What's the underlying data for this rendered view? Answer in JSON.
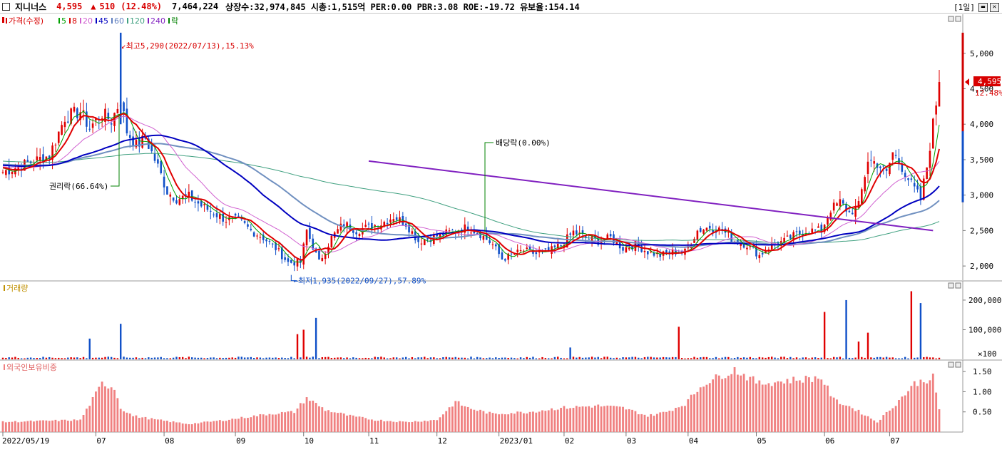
{
  "header": {
    "stock_name": "지니너스",
    "price": "4,595",
    "arrow": "▲",
    "change": "510",
    "change_pct": "(12.48%)",
    "volume": "7,464,224",
    "info": "상장수:32,974,845 시총:1,515억 PER:0.00 PBR:3.08 ROE:-19.72 유보율:154.14",
    "period": "[1일]"
  },
  "legend_price": {
    "items": [
      {
        "label": "가격(수정)",
        "color": "#d80000"
      },
      {
        "label": "5",
        "color": "#00a000"
      },
      {
        "label": "8",
        "color": "#d80000"
      },
      {
        "label": "20",
        "color": "#d060d0"
      },
      {
        "label": "45",
        "color": "#0000c0"
      },
      {
        "label": "60",
        "color": "#6080c0"
      },
      {
        "label": "120",
        "color": "#40a080"
      },
      {
        "label": "240",
        "color": "#8020c0"
      },
      {
        "label": "락",
        "color": "#008000"
      }
    ]
  },
  "legend_volume": {
    "label": "거래량",
    "color": "#c09000"
  },
  "legend_foreign": {
    "label": "외국인보유비중",
    "color": "#f08080"
  },
  "annotations": {
    "high": "최고5,290(2022/07/13),15.13%",
    "low": "최저1,935(2022/09/27),57.89%",
    "rights": "권리락(66.64%)",
    "dividend": "배당락(0.00%)"
  },
  "current_price_tag": {
    "price": "4,595",
    "pct": "12.48%"
  },
  "chart_data": [
    {
      "type": "candlestick",
      "name": "price",
      "ylim": [
        1800,
        5450
      ],
      "y_ticks": [
        "5,000",
        "4,500",
        "4,000",
        "3,500",
        "3,000",
        "2,500",
        "2,000"
      ],
      "y_tick_values": [
        5000,
        4500,
        4000,
        3500,
        3000,
        2500,
        2000
      ],
      "x_ticks": [
        "2022/05/19",
        "07",
        "08",
        "09",
        "10",
        "11",
        "12",
        "2023/01",
        "02",
        "03",
        "04",
        "05",
        "06",
        "07"
      ],
      "x_tick_index": [
        0,
        30,
        52,
        75,
        97,
        118,
        140,
        160,
        181,
        201,
        221,
        243,
        265,
        286
      ],
      "keypoints_close": [
        [
          0,
          3330
        ],
        [
          5,
          3400
        ],
        [
          10,
          3480
        ],
        [
          15,
          3560
        ],
        [
          20,
          4100
        ],
        [
          25,
          4180
        ],
        [
          28,
          3950
        ],
        [
          32,
          4150
        ],
        [
          35,
          4050
        ],
        [
          38,
          4350
        ],
        [
          40,
          3900
        ],
        [
          43,
          3700
        ],
        [
          46,
          3800
        ],
        [
          50,
          3400
        ],
        [
          53,
          3050
        ],
        [
          56,
          2950
        ],
        [
          60,
          2980
        ],
        [
          64,
          2850
        ],
        [
          68,
          2750
        ],
        [
          72,
          2650
        ],
        [
          76,
          2650
        ],
        [
          80,
          2500
        ],
        [
          84,
          2400
        ],
        [
          88,
          2250
        ],
        [
          92,
          2050
        ],
        [
          96,
          2050
        ],
        [
          98,
          2500
        ],
        [
          102,
          2050
        ],
        [
          106,
          2400
        ],
        [
          110,
          2600
        ],
        [
          114,
          2500
        ],
        [
          118,
          2550
        ],
        [
          122,
          2600
        ],
        [
          126,
          2700
        ],
        [
          130,
          2600
        ],
        [
          134,
          2350
        ],
        [
          138,
          2400
        ],
        [
          142,
          2450
        ],
        [
          146,
          2500
        ],
        [
          150,
          2550
        ],
        [
          154,
          2450
        ],
        [
          158,
          2300
        ],
        [
          161,
          2100
        ],
        [
          164,
          2150
        ],
        [
          168,
          2220
        ],
        [
          172,
          2170
        ],
        [
          176,
          2200
        ],
        [
          180,
          2300
        ],
        [
          184,
          2480
        ],
        [
          188,
          2400
        ],
        [
          192,
          2350
        ],
        [
          196,
          2400
        ],
        [
          200,
          2250
        ],
        [
          204,
          2300
        ],
        [
          208,
          2200
        ],
        [
          212,
          2150
        ],
        [
          216,
          2200
        ],
        [
          220,
          2200
        ],
        [
          224,
          2500
        ],
        [
          228,
          2550
        ],
        [
          232,
          2500
        ],
        [
          236,
          2350
        ],
        [
          240,
          2300
        ],
        [
          244,
          2150
        ],
        [
          248,
          2300
        ],
        [
          252,
          2350
        ],
        [
          256,
          2450
        ],
        [
          260,
          2500
        ],
        [
          264,
          2500
        ],
        [
          267,
          2800
        ],
        [
          270,
          2900
        ],
        [
          273,
          2750
        ],
        [
          276,
          2850
        ],
        [
          279,
          3500
        ],
        [
          282,
          3450
        ],
        [
          285,
          3300
        ],
        [
          287,
          3600
        ],
        [
          290,
          3400
        ],
        [
          293,
          3150
        ],
        [
          296,
          2950
        ],
        [
          298,
          3400
        ],
        [
          300,
          4000
        ],
        [
          302,
          4595
        ]
      ],
      "high": {
        "date": "2022/07/13",
        "value": 5290
      },
      "low": {
        "date": "2022/09/27",
        "value": 1935
      },
      "current": 4595
    },
    {
      "type": "bar",
      "name": "거래량",
      "ylim": [
        0,
        260000
      ],
      "y_ticks": [
        "200,000",
        "100,000",
        "×100"
      ],
      "y_tick_values": [
        200000,
        100000
      ],
      "spikes": [
        [
          28,
          70000
        ],
        [
          38,
          120000
        ],
        [
          95,
          85000
        ],
        [
          97,
          100000
        ],
        [
          101,
          140000
        ],
        [
          218,
          110000
        ],
        [
          183,
          40000
        ],
        [
          265,
          160000
        ],
        [
          272,
          200000
        ],
        [
          276,
          60000
        ],
        [
          279,
          90000
        ],
        [
          293,
          230000
        ],
        [
          296,
          190000
        ]
      ]
    },
    {
      "type": "bar",
      "name": "외국인보유비중",
      "ylim": [
        0,
        1.75
      ],
      "y_ticks": [
        "1.50",
        "1.00",
        "0.50"
      ],
      "y_tick_values": [
        1.5,
        1.0,
        0.5
      ],
      "keypoints": [
        [
          0,
          0.25
        ],
        [
          25,
          0.3
        ],
        [
          32,
          1.2
        ],
        [
          36,
          1.1
        ],
        [
          38,
          0.6
        ],
        [
          42,
          0.4
        ],
        [
          50,
          0.3
        ],
        [
          60,
          0.2
        ],
        [
          72,
          0.3
        ],
        [
          86,
          0.45
        ],
        [
          94,
          0.5
        ],
        [
          98,
          0.85
        ],
        [
          104,
          0.55
        ],
        [
          112,
          0.4
        ],
        [
          120,
          0.3
        ],
        [
          130,
          0.25
        ],
        [
          140,
          0.3
        ],
        [
          146,
          0.75
        ],
        [
          150,
          0.6
        ],
        [
          158,
          0.45
        ],
        [
          170,
          0.5
        ],
        [
          180,
          0.6
        ],
        [
          192,
          0.65
        ],
        [
          200,
          0.6
        ],
        [
          208,
          0.4
        ],
        [
          214,
          0.5
        ],
        [
          220,
          0.7
        ],
        [
          226,
          1.2
        ],
        [
          236,
          1.55
        ],
        [
          244,
          1.2
        ],
        [
          256,
          1.3
        ],
        [
          264,
          1.35
        ],
        [
          268,
          0.8
        ],
        [
          274,
          0.6
        ],
        [
          282,
          0.25
        ],
        [
          288,
          0.7
        ],
        [
          294,
          1.2
        ],
        [
          300,
          1.35
        ],
        [
          302,
          0.55
        ]
      ]
    }
  ]
}
